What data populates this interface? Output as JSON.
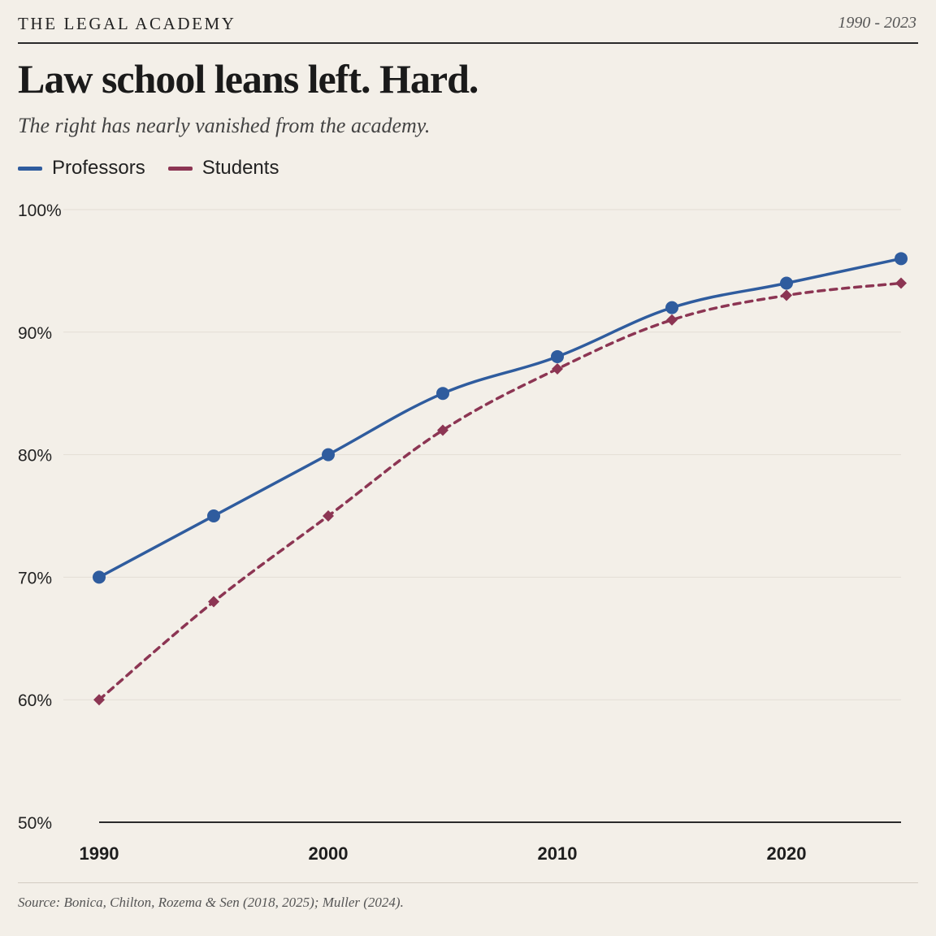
{
  "header": {
    "brand": "THE LEGAL ACADEMY",
    "year_range": "1990 - 2023",
    "title": "Law school leans left. Hard.",
    "subtitle": "The right has nearly vanished from the academy."
  },
  "legend": {
    "professors_label": "Professors",
    "students_label": "Students"
  },
  "footer": {
    "source": "Source: Bonica, Chilton, Rozema & Sen (2018, 2025); Muller (2024)."
  },
  "colors": {
    "professors": "#2f5c9e",
    "students": "#8c3553",
    "gridline": "#e3ded5",
    "axis": "#2a2a2a"
  },
  "chart_data": {
    "type": "line",
    "title": "Law school leans left. Hard.",
    "subtitle": "The right has nearly vanished from the academy.",
    "xlabel": "",
    "ylabel": "",
    "x": [
      1990,
      1995,
      2000,
      2005,
      2010,
      2015,
      2020,
      2025
    ],
    "xticks": [
      1990,
      2000,
      2010,
      2020
    ],
    "xtick_labels": [
      "1990",
      "2000",
      "2010",
      "2020"
    ],
    "xlim": [
      1990,
      2025
    ],
    "ylim": [
      50,
      100
    ],
    "yticks": [
      50,
      60,
      70,
      80,
      90,
      100
    ],
    "ytick_labels": [
      "50%",
      "60%",
      "70%",
      "80%",
      "90%",
      "100%"
    ],
    "grid": true,
    "legend_position": "top-left",
    "series": [
      {
        "name": "Professors",
        "values": [
          70,
          75,
          80,
          85,
          88,
          92,
          94,
          96
        ],
        "marker": "circle",
        "line_style": "solid"
      },
      {
        "name": "Students",
        "values": [
          60,
          68,
          75,
          82,
          87,
          91,
          93,
          94
        ],
        "marker": "diamond",
        "line_style": "dashed"
      }
    ]
  }
}
